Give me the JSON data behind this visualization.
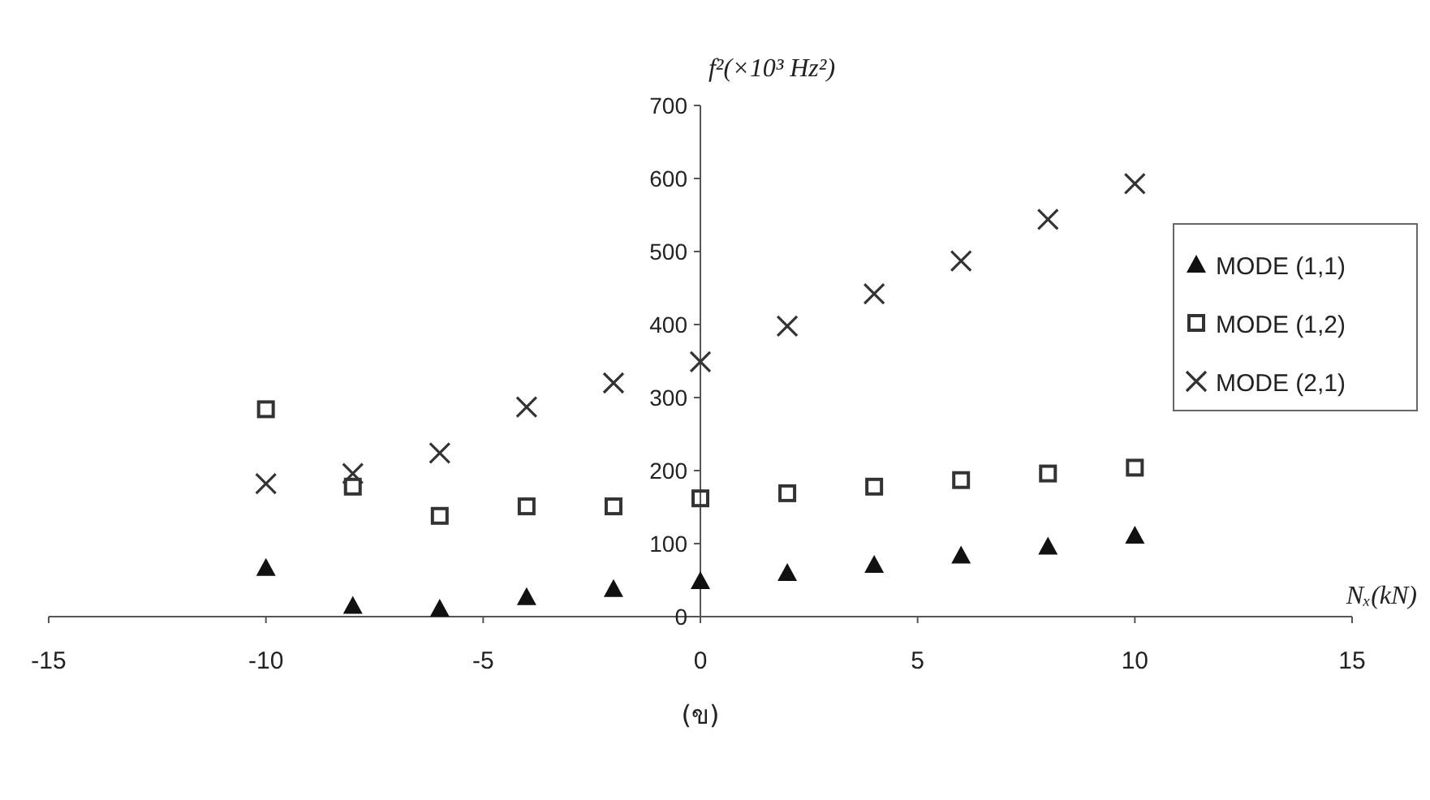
{
  "chart_data": {
    "type": "scatter",
    "xlabel": "Nₓ(kN)",
    "ylabel": "f²(×10³ Hz²)",
    "x": [
      -10,
      -8,
      -6,
      -4,
      -2,
      0,
      2,
      4,
      6,
      8,
      10
    ],
    "xlim": [
      -15,
      15
    ],
    "xticks": [
      -15,
      -10,
      -5,
      0,
      5,
      10,
      15
    ],
    "ylim": [
      0,
      700
    ],
    "yticks": [
      0,
      100,
      200,
      300,
      400,
      500,
      600,
      700
    ],
    "series": [
      {
        "name": "MODE (1,1)",
        "color": "#111111",
        "marker": "triangle",
        "values": [
          67,
          15,
          11,
          27,
          38,
          49,
          60,
          71,
          84,
          96,
          111
        ]
      },
      {
        "name": "MODE (1,2)",
        "color": "#333333",
        "marker": "square",
        "values": [
          284,
          178,
          138,
          151,
          151,
          162,
          169,
          178,
          187,
          196,
          204
        ]
      },
      {
        "name": "MODE (2,1)",
        "color": "#333333",
        "marker": "cross",
        "values": [
          182,
          196,
          224,
          287,
          320,
          349,
          398,
          442,
          487,
          544,
          593
        ]
      }
    ],
    "legend": "right",
    "annotations": [
      "(ข)"
    ]
  }
}
